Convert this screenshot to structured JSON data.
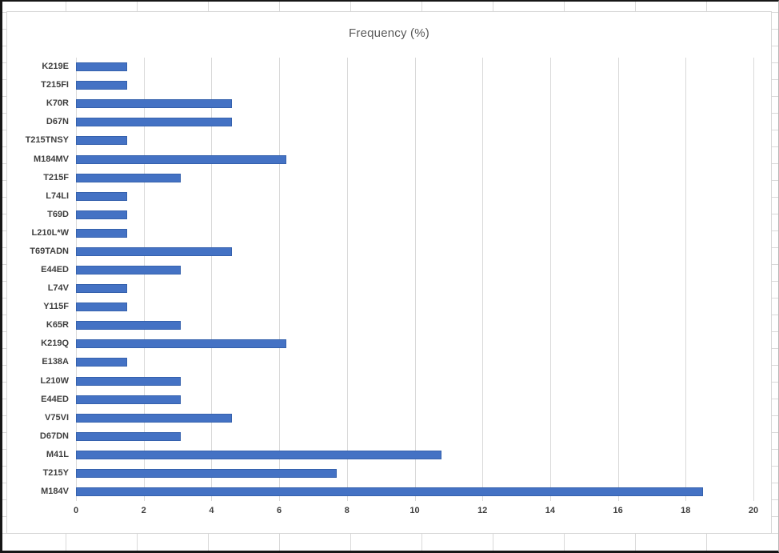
{
  "window": {
    "kind": "spreadsheet-with-embedded-chart",
    "sheet_grid_color": "#d9d9d9",
    "frame_color": "#161616",
    "chart_border_color": "#d6d6d6"
  },
  "chart_data": {
    "type": "bar",
    "orientation": "horizontal",
    "title": "Frequency (%)",
    "categories": [
      "K219E",
      "T215FI",
      "K70R",
      "D67N",
      "T215TNSY",
      "M184MV",
      "T215F",
      "L74LI",
      "T69D",
      "L210L*W",
      "T69TADN",
      "E44ED",
      "L74V",
      "Y115F",
      "K65R",
      "K219Q",
      "E138A",
      "L210W",
      "E44ED",
      "V75VI",
      "D67DN",
      "M41L",
      "T215Y",
      "M184V"
    ],
    "values": [
      1.5,
      1.5,
      4.6,
      4.6,
      1.5,
      6.2,
      3.1,
      1.5,
      1.5,
      1.5,
      4.6,
      3.1,
      1.5,
      1.5,
      3.1,
      6.2,
      1.5,
      3.1,
      3.1,
      4.6,
      3.1,
      10.8,
      7.7,
      18.5
    ],
    "xlabel": "",
    "ylabel": "",
    "xlim": [
      0,
      20
    ],
    "xticks": [
      0,
      2,
      4,
      6,
      8,
      10,
      12,
      14,
      16,
      18,
      20
    ],
    "grid": "vertical-only",
    "legend": "none",
    "bar_color": "#4472C4",
    "bar_border_color": "#3561ad",
    "title_color": "#595959",
    "label_color": "#3f3f3f",
    "gridline_color": "#d9d9d9"
  }
}
